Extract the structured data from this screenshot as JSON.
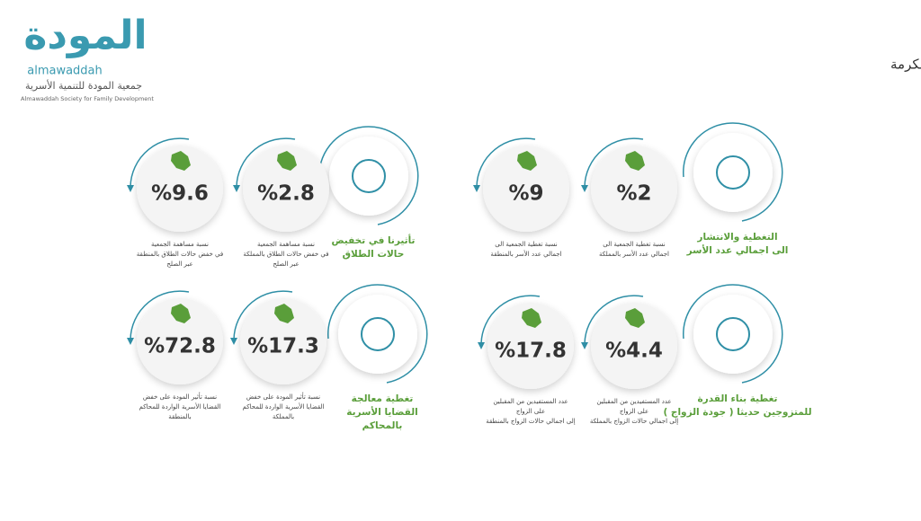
{
  "header": {
    "logo": "المودة",
    "logo_latin": "almawaddah",
    "org_name": "جمعية المودة للتنمية الأسرية",
    "org_name_en": "Almawaddah Society for Family Development",
    "title": "تأثير جمعية المودة على مستوى المملكة وعلى مستوى منطقة مكة المكرمة"
  },
  "groups": [
    {
      "label": [
        "التغطية والانتشار",
        "الى اجمالي عدد الأسر"
      ],
      "stats": [
        {
          "value": "%2",
          "description": [
            "نسبة تغطية الجمعية الى",
            "اجمالي عدد الأسر بالمملكة"
          ]
        },
        {
          "value": "%9",
          "description": [
            "نسبة تغطية الجمعية الى",
            "اجمالي عدد الأسر بالمنطقة"
          ]
        }
      ]
    },
    {
      "label": [
        "تأثيرنا في تخفيض",
        "حالات الطلاق"
      ],
      "stats": [
        {
          "value": "%2.8",
          "description": [
            "نسبة مساهمة الجمعية",
            "في خفض حالات الطلاق بالمملكة",
            "عبر الصلح"
          ]
        },
        {
          "value": "%9.6",
          "description": [
            "نسبة مساهمة الجمعية",
            "في خفض حالات الطلاق بالمنطقة",
            "عبر الصلح"
          ]
        }
      ]
    },
    {
      "label": [
        "تغطية بناء القدرة",
        "للمتزوجين حديثا ( جودة الزواج )"
      ],
      "stats": [
        {
          "value": "%4.4",
          "description": [
            "عدد المستفيدين من المقبلين",
            "على الزواج",
            "إلى اجمالي حالات الزواج بالمملكة"
          ]
        },
        {
          "value": "%17.8",
          "description": [
            "عدد المستفيدين من المقبلين",
            "على الزواج",
            "إلى اجمالي حالات الزواج بالمنطقة"
          ]
        }
      ]
    },
    {
      "label": [
        "تغطية معالجة",
        "القضايا الأسرية",
        "بالمحاكم"
      ],
      "stats": [
        {
          "value": "%17.3",
          "description": [
            "نسبة تأثير المودة على خفض",
            "القضايا الأسرية الواردة للمحاكم",
            "بالمملكة"
          ]
        },
        {
          "value": "%72.8",
          "description": [
            "نسبة تأثير المودة على خفض",
            "القضايا الأسرية الواردة للمحاكم",
            "بالمنطقة"
          ]
        }
      ]
    }
  ]
}
